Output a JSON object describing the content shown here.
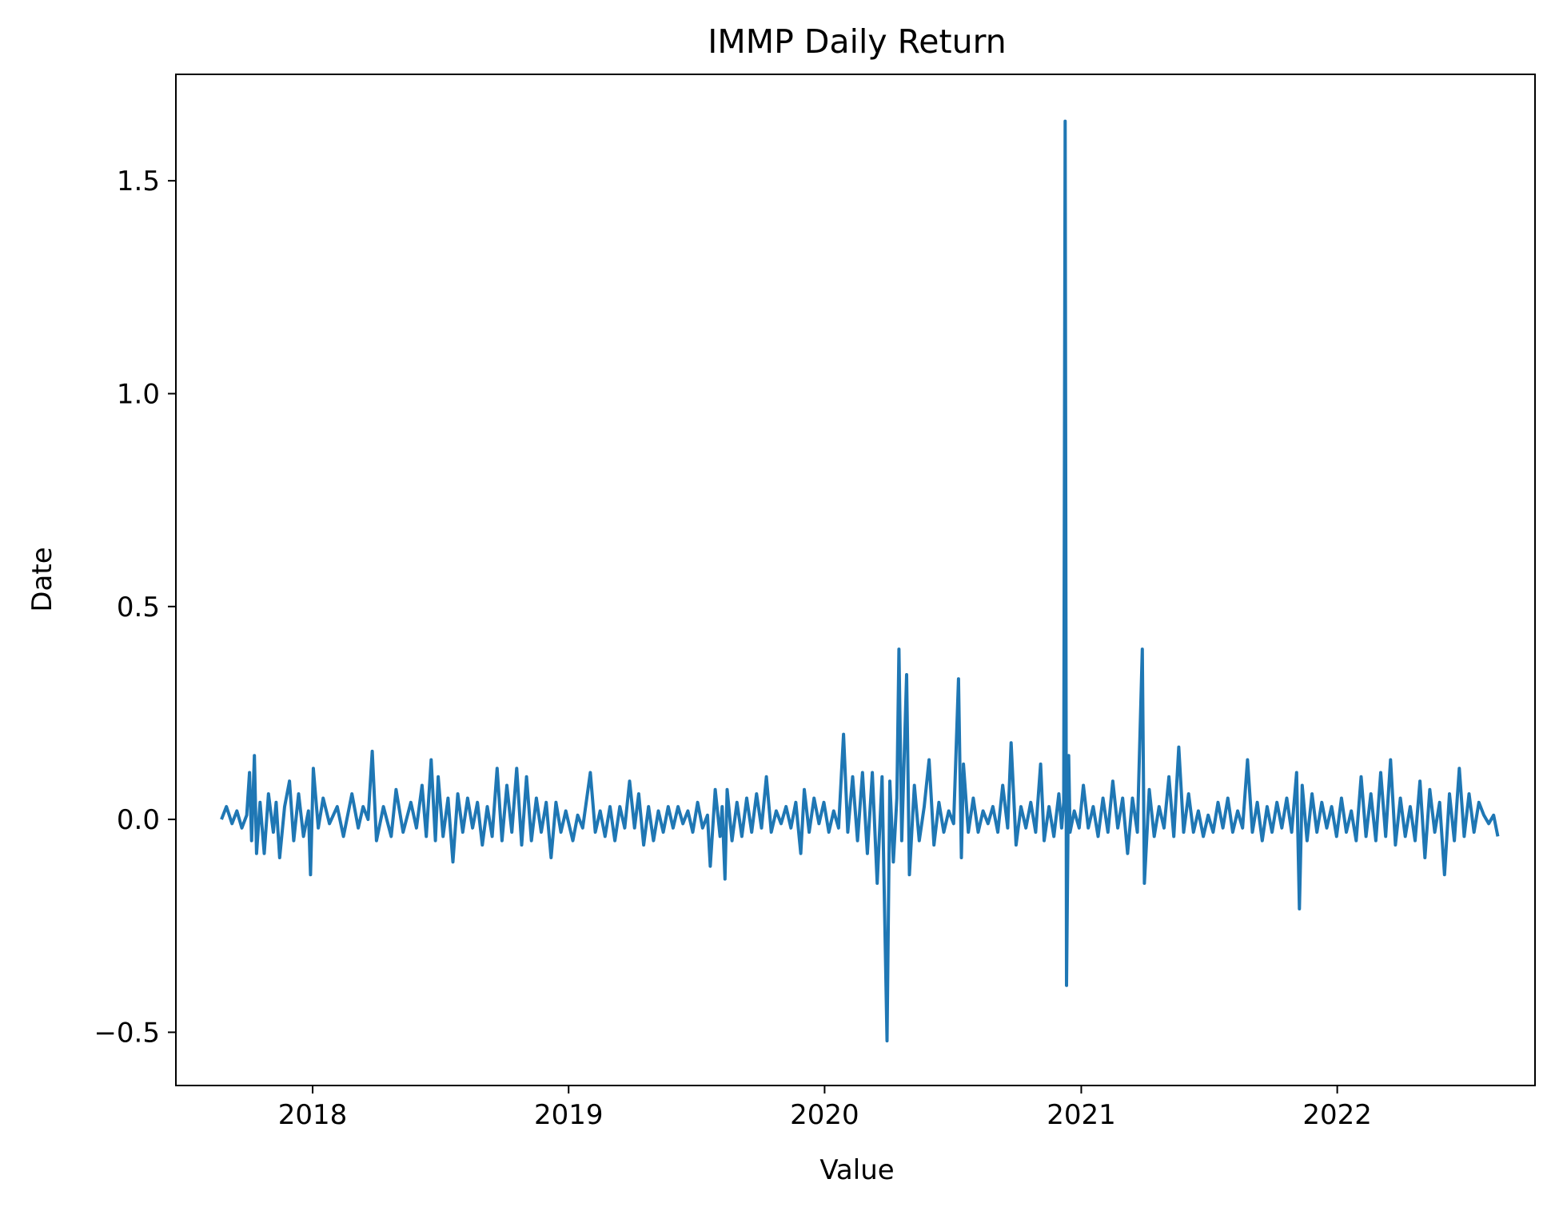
{
  "chart_data": {
    "type": "line",
    "title": "IMMP Daily Return",
    "xlabel": "Value",
    "ylabel": "Date",
    "xlim": [
      "2017-06-20",
      "2022-10-10"
    ],
    "ylim": [
      -0.625,
      1.75
    ],
    "x_ticks": [
      "2018-01-01",
      "2019-01-01",
      "2020-01-01",
      "2021-01-01",
      "2022-01-01"
    ],
    "x_tick_labels": [
      "2018",
      "2019",
      "2020",
      "2021",
      "2022"
    ],
    "y_ticks": [
      -0.5,
      0.0,
      0.5,
      1.0,
      1.5
    ],
    "y_tick_labels": [
      "−0.5",
      "0.0",
      "0.5",
      "1.0",
      "1.5"
    ],
    "grid": false,
    "legend": "none",
    "series": [
      {
        "color": "#1f77b4",
        "points": [
          [
            "2017-08-24",
            0.0
          ],
          [
            "2017-08-31",
            0.03
          ],
          [
            "2017-09-08",
            -0.01
          ],
          [
            "2017-09-15",
            0.02
          ],
          [
            "2017-09-22",
            -0.02
          ],
          [
            "2017-09-29",
            0.01
          ],
          [
            "2017-10-03",
            0.11
          ],
          [
            "2017-10-06",
            -0.05
          ],
          [
            "2017-10-10",
            0.15
          ],
          [
            "2017-10-13",
            -0.08
          ],
          [
            "2017-10-18",
            0.04
          ],
          [
            "2017-10-24",
            -0.08
          ],
          [
            "2017-10-30",
            0.06
          ],
          [
            "2017-11-06",
            -0.03
          ],
          [
            "2017-11-10",
            0.04
          ],
          [
            "2017-11-15",
            -0.09
          ],
          [
            "2017-11-22",
            0.03
          ],
          [
            "2017-11-29",
            0.09
          ],
          [
            "2017-12-05",
            -0.05
          ],
          [
            "2017-12-12",
            0.06
          ],
          [
            "2017-12-19",
            -0.04
          ],
          [
            "2017-12-26",
            0.02
          ],
          [
            "2017-12-29",
            -0.13
          ],
          [
            "2018-01-02",
            0.12
          ],
          [
            "2018-01-09",
            -0.02
          ],
          [
            "2018-01-16",
            0.05
          ],
          [
            "2018-01-25",
            -0.01
          ],
          [
            "2018-02-05",
            0.03
          ],
          [
            "2018-02-14",
            -0.04
          ],
          [
            "2018-02-26",
            0.06
          ],
          [
            "2018-03-07",
            -0.02
          ],
          [
            "2018-03-14",
            0.03
          ],
          [
            "2018-03-21",
            0.0
          ],
          [
            "2018-03-27",
            0.16
          ],
          [
            "2018-04-02",
            -0.05
          ],
          [
            "2018-04-12",
            0.03
          ],
          [
            "2018-04-23",
            -0.04
          ],
          [
            "2018-04-30",
            0.07
          ],
          [
            "2018-05-10",
            -0.03
          ],
          [
            "2018-05-21",
            0.04
          ],
          [
            "2018-05-29",
            -0.02
          ],
          [
            "2018-06-06",
            0.08
          ],
          [
            "2018-06-12",
            -0.04
          ],
          [
            "2018-06-19",
            0.14
          ],
          [
            "2018-06-25",
            -0.05
          ],
          [
            "2018-06-29",
            0.1
          ],
          [
            "2018-07-06",
            -0.04
          ],
          [
            "2018-07-13",
            0.05
          ],
          [
            "2018-07-20",
            -0.1
          ],
          [
            "2018-07-27",
            0.06
          ],
          [
            "2018-08-03",
            -0.03
          ],
          [
            "2018-08-10",
            0.05
          ],
          [
            "2018-08-17",
            -0.02
          ],
          [
            "2018-08-24",
            0.04
          ],
          [
            "2018-08-31",
            -0.06
          ],
          [
            "2018-09-07",
            0.03
          ],
          [
            "2018-09-14",
            -0.04
          ],
          [
            "2018-09-21",
            0.12
          ],
          [
            "2018-09-28",
            -0.05
          ],
          [
            "2018-10-05",
            0.08
          ],
          [
            "2018-10-12",
            -0.03
          ],
          [
            "2018-10-19",
            0.12
          ],
          [
            "2018-10-26",
            -0.06
          ],
          [
            "2018-11-02",
            0.1
          ],
          [
            "2018-11-09",
            -0.05
          ],
          [
            "2018-11-16",
            0.05
          ],
          [
            "2018-11-23",
            -0.03
          ],
          [
            "2018-11-30",
            0.04
          ],
          [
            "2018-12-07",
            -0.09
          ],
          [
            "2018-12-14",
            0.04
          ],
          [
            "2018-12-21",
            -0.03
          ],
          [
            "2018-12-28",
            0.02
          ],
          [
            "2019-01-07",
            -0.05
          ],
          [
            "2019-01-14",
            0.01
          ],
          [
            "2019-01-21",
            -0.02
          ],
          [
            "2019-02-01",
            0.11
          ],
          [
            "2019-02-08",
            -0.03
          ],
          [
            "2019-02-15",
            0.02
          ],
          [
            "2019-02-22",
            -0.04
          ],
          [
            "2019-03-01",
            0.03
          ],
          [
            "2019-03-08",
            -0.05
          ],
          [
            "2019-03-15",
            0.03
          ],
          [
            "2019-03-22",
            -0.02
          ],
          [
            "2019-03-29",
            0.09
          ],
          [
            "2019-04-05",
            -0.02
          ],
          [
            "2019-04-11",
            0.06
          ],
          [
            "2019-04-18",
            -0.06
          ],
          [
            "2019-04-25",
            0.03
          ],
          [
            "2019-05-02",
            -0.05
          ],
          [
            "2019-05-09",
            0.02
          ],
          [
            "2019-05-16",
            -0.03
          ],
          [
            "2019-05-23",
            0.03
          ],
          [
            "2019-05-30",
            -0.02
          ],
          [
            "2019-06-06",
            0.03
          ],
          [
            "2019-06-13",
            -0.01
          ],
          [
            "2019-06-20",
            0.02
          ],
          [
            "2019-06-27",
            -0.03
          ],
          [
            "2019-07-04",
            0.04
          ],
          [
            "2019-07-11",
            -0.02
          ],
          [
            "2019-07-18",
            0.01
          ],
          [
            "2019-07-22",
            -0.11
          ],
          [
            "2019-07-29",
            0.07
          ],
          [
            "2019-08-05",
            -0.04
          ],
          [
            "2019-08-08",
            0.03
          ],
          [
            "2019-08-12",
            -0.14
          ],
          [
            "2019-08-15",
            0.07
          ],
          [
            "2019-08-22",
            -0.05
          ],
          [
            "2019-08-29",
            0.04
          ],
          [
            "2019-09-05",
            -0.04
          ],
          [
            "2019-09-12",
            0.05
          ],
          [
            "2019-09-19",
            -0.03
          ],
          [
            "2019-09-26",
            0.06
          ],
          [
            "2019-10-03",
            -0.02
          ],
          [
            "2019-10-10",
            0.1
          ],
          [
            "2019-10-17",
            -0.03
          ],
          [
            "2019-10-24",
            0.02
          ],
          [
            "2019-10-31",
            -0.01
          ],
          [
            "2019-11-07",
            0.03
          ],
          [
            "2019-11-14",
            -0.02
          ],
          [
            "2019-11-21",
            0.04
          ],
          [
            "2019-11-28",
            -0.08
          ],
          [
            "2019-12-03",
            0.07
          ],
          [
            "2019-12-10",
            -0.03
          ],
          [
            "2019-12-17",
            0.05
          ],
          [
            "2019-12-24",
            -0.01
          ],
          [
            "2019-12-31",
            0.04
          ],
          [
            "2020-01-07",
            -0.03
          ],
          [
            "2020-01-14",
            0.02
          ],
          [
            "2020-01-21",
            -0.02
          ],
          [
            "2020-01-28",
            0.2
          ],
          [
            "2020-02-03",
            -0.03
          ],
          [
            "2020-02-10",
            0.1
          ],
          [
            "2020-02-17",
            -0.05
          ],
          [
            "2020-02-24",
            0.11
          ],
          [
            "2020-03-02",
            -0.08
          ],
          [
            "2020-03-09",
            0.11
          ],
          [
            "2020-03-16",
            -0.15
          ],
          [
            "2020-03-23",
            0.1
          ],
          [
            "2020-03-30",
            -0.52
          ],
          [
            "2020-04-03",
            0.09
          ],
          [
            "2020-04-08",
            -0.1
          ],
          [
            "2020-04-13",
            0.05
          ],
          [
            "2020-04-16",
            0.4
          ],
          [
            "2020-04-20",
            -0.05
          ],
          [
            "2020-04-27",
            0.34
          ],
          [
            "2020-05-01",
            -0.13
          ],
          [
            "2020-05-08",
            0.08
          ],
          [
            "2020-05-15",
            -0.05
          ],
          [
            "2020-05-22",
            0.03
          ],
          [
            "2020-05-29",
            0.14
          ],
          [
            "2020-06-05",
            -0.06
          ],
          [
            "2020-06-12",
            0.04
          ],
          [
            "2020-06-19",
            -0.03
          ],
          [
            "2020-06-26",
            0.02
          ],
          [
            "2020-07-03",
            -0.01
          ],
          [
            "2020-07-10",
            0.33
          ],
          [
            "2020-07-14",
            -0.09
          ],
          [
            "2020-07-17",
            0.13
          ],
          [
            "2020-07-24",
            -0.03
          ],
          [
            "2020-07-31",
            0.05
          ],
          [
            "2020-08-07",
            -0.03
          ],
          [
            "2020-08-14",
            0.02
          ],
          [
            "2020-08-21",
            -0.01
          ],
          [
            "2020-08-28",
            0.03
          ],
          [
            "2020-09-04",
            -0.03
          ],
          [
            "2020-09-11",
            0.08
          ],
          [
            "2020-09-18",
            -0.02
          ],
          [
            "2020-09-23",
            0.18
          ],
          [
            "2020-09-30",
            -0.06
          ],
          [
            "2020-10-07",
            0.03
          ],
          [
            "2020-10-14",
            -0.02
          ],
          [
            "2020-10-21",
            0.04
          ],
          [
            "2020-10-28",
            -0.03
          ],
          [
            "2020-11-04",
            0.13
          ],
          [
            "2020-11-09",
            -0.05
          ],
          [
            "2020-11-16",
            0.03
          ],
          [
            "2020-11-23",
            -0.04
          ],
          [
            "2020-11-30",
            0.06
          ],
          [
            "2020-12-04",
            -0.02
          ],
          [
            "2020-12-07",
            0.04
          ],
          [
            "2020-12-09",
            1.64
          ],
          [
            "2020-12-11",
            -0.39
          ],
          [
            "2020-12-14",
            0.15
          ],
          [
            "2020-12-16",
            -0.03
          ],
          [
            "2020-12-22",
            0.02
          ],
          [
            "2020-12-29",
            -0.02
          ],
          [
            "2021-01-04",
            0.08
          ],
          [
            "2021-01-11",
            -0.02
          ],
          [
            "2021-01-18",
            0.03
          ],
          [
            "2021-01-25",
            -0.04
          ],
          [
            "2021-02-01",
            0.05
          ],
          [
            "2021-02-08",
            -0.03
          ],
          [
            "2021-02-15",
            0.09
          ],
          [
            "2021-02-22",
            -0.02
          ],
          [
            "2021-03-01",
            0.05
          ],
          [
            "2021-03-08",
            -0.08
          ],
          [
            "2021-03-15",
            0.05
          ],
          [
            "2021-03-22",
            -0.03
          ],
          [
            "2021-03-29",
            0.4
          ],
          [
            "2021-04-01",
            -0.15
          ],
          [
            "2021-04-08",
            0.07
          ],
          [
            "2021-04-15",
            -0.04
          ],
          [
            "2021-04-22",
            0.03
          ],
          [
            "2021-04-29",
            -0.02
          ],
          [
            "2021-05-06",
            0.1
          ],
          [
            "2021-05-13",
            -0.04
          ],
          [
            "2021-05-20",
            0.17
          ],
          [
            "2021-05-27",
            -0.03
          ],
          [
            "2021-06-03",
            0.06
          ],
          [
            "2021-06-10",
            -0.03
          ],
          [
            "2021-06-17",
            0.02
          ],
          [
            "2021-06-24",
            -0.04
          ],
          [
            "2021-07-01",
            0.01
          ],
          [
            "2021-07-08",
            -0.03
          ],
          [
            "2021-07-15",
            0.04
          ],
          [
            "2021-07-22",
            -0.02
          ],
          [
            "2021-07-29",
            0.05
          ],
          [
            "2021-08-05",
            -0.03
          ],
          [
            "2021-08-12",
            0.02
          ],
          [
            "2021-08-19",
            -0.02
          ],
          [
            "2021-08-26",
            0.14
          ],
          [
            "2021-09-02",
            -0.03
          ],
          [
            "2021-09-09",
            0.04
          ],
          [
            "2021-09-16",
            -0.05
          ],
          [
            "2021-09-23",
            0.03
          ],
          [
            "2021-09-30",
            -0.03
          ],
          [
            "2021-10-07",
            0.04
          ],
          [
            "2021-10-14",
            -0.02
          ],
          [
            "2021-10-21",
            0.05
          ],
          [
            "2021-10-28",
            -0.03
          ],
          [
            "2021-11-04",
            0.11
          ],
          [
            "2021-11-08",
            -0.21
          ],
          [
            "2021-11-12",
            0.08
          ],
          [
            "2021-11-19",
            -0.05
          ],
          [
            "2021-11-26",
            0.06
          ],
          [
            "2021-12-03",
            -0.03
          ],
          [
            "2021-12-10",
            0.04
          ],
          [
            "2021-12-17",
            -0.02
          ],
          [
            "2021-12-24",
            0.03
          ],
          [
            "2021-12-31",
            -0.04
          ],
          [
            "2022-01-07",
            0.05
          ],
          [
            "2022-01-14",
            -0.03
          ],
          [
            "2022-01-21",
            0.02
          ],
          [
            "2022-01-28",
            -0.05
          ],
          [
            "2022-02-04",
            0.1
          ],
          [
            "2022-02-11",
            -0.04
          ],
          [
            "2022-02-18",
            0.06
          ],
          [
            "2022-02-25",
            -0.05
          ],
          [
            "2022-03-04",
            0.11
          ],
          [
            "2022-03-11",
            -0.04
          ],
          [
            "2022-03-18",
            0.14
          ],
          [
            "2022-03-25",
            -0.06
          ],
          [
            "2022-04-01",
            0.05
          ],
          [
            "2022-04-08",
            -0.04
          ],
          [
            "2022-04-15",
            0.03
          ],
          [
            "2022-04-22",
            -0.05
          ],
          [
            "2022-04-29",
            0.09
          ],
          [
            "2022-05-06",
            -0.09
          ],
          [
            "2022-05-13",
            0.07
          ],
          [
            "2022-05-20",
            -0.03
          ],
          [
            "2022-05-27",
            0.04
          ],
          [
            "2022-06-03",
            -0.13
          ],
          [
            "2022-06-10",
            0.06
          ],
          [
            "2022-06-17",
            -0.05
          ],
          [
            "2022-06-24",
            0.12
          ],
          [
            "2022-07-01",
            -0.04
          ],
          [
            "2022-07-08",
            0.06
          ],
          [
            "2022-07-15",
            -0.03
          ],
          [
            "2022-07-22",
            0.04
          ],
          [
            "2022-07-29",
            0.01
          ],
          [
            "2022-08-05",
            -0.01
          ],
          [
            "2022-08-12",
            0.01
          ],
          [
            "2022-08-18",
            -0.04
          ]
        ]
      }
    ]
  }
}
